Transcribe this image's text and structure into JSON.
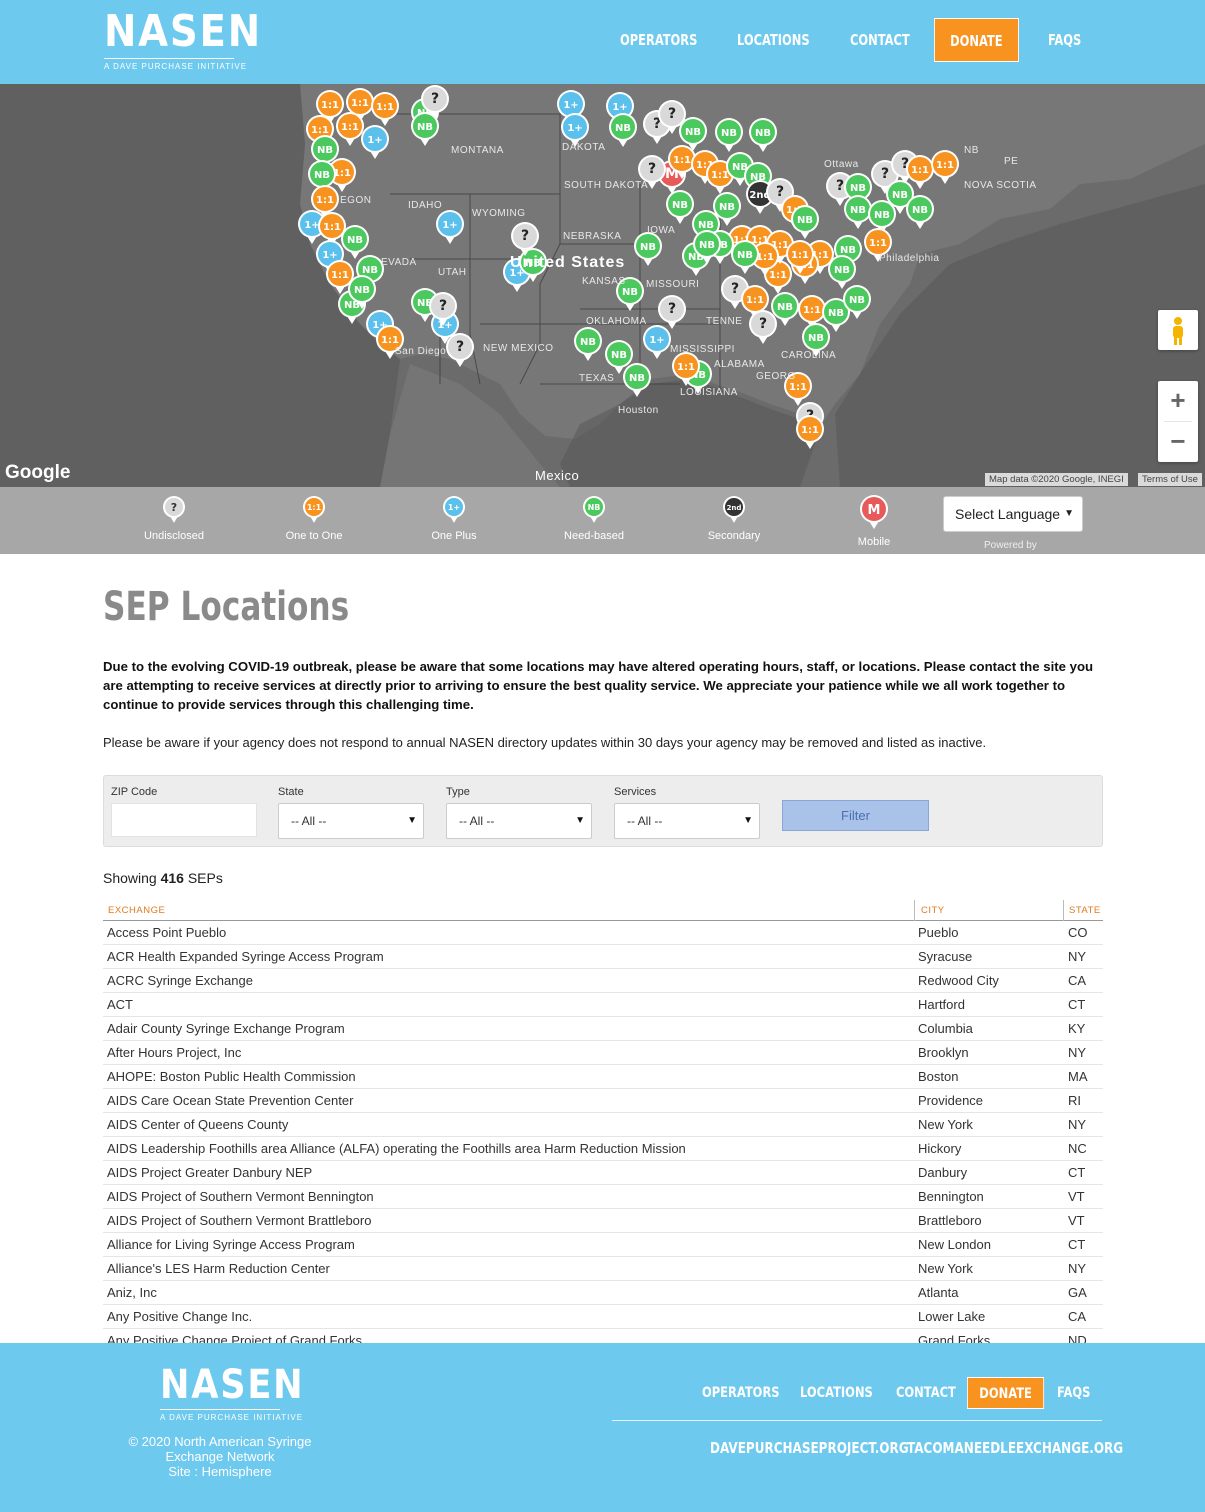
{
  "header": {
    "logo": "NASEN",
    "logo_tagline": "A DAVE PURCHASE INITIATIVE",
    "nav": [
      "OPERATORS",
      "LOCATIONS",
      "CONTACT",
      "DONATE",
      "FAQS"
    ]
  },
  "map": {
    "country_label": "United States",
    "labels": [
      "MONTANA",
      "DAKOTA",
      "SOUTH DAKOTA",
      "IDAHO",
      "WYOMING",
      "NEBRASKA",
      "IOWA",
      "UTAH",
      "KANSAS",
      "MISSOURI",
      "NEW MEXICO",
      "OKLAHOMA",
      "TEXAS",
      "MISSISSIPPI",
      "ALABAMA",
      "LOUISIANA",
      "TENNE",
      "GEORG",
      "CAROLINA",
      "Ottawa",
      "NOVA SCOTIA",
      "PE",
      "NB",
      "Philadelphia",
      "Houston",
      "San Diego",
      "EGON",
      "EVADA",
      "Mexico"
    ],
    "google": "Google",
    "attribution": "Map data ©2020 Google, INEGI",
    "terms": "Terms of Use",
    "zoom_in": "+",
    "zoom_out": "−"
  },
  "legend": {
    "items": [
      {
        "label": "Undisclosed",
        "glyph": "?",
        "color": "#d9d9d9"
      },
      {
        "label": "One to One",
        "glyph": "1:1",
        "color": "#f7931e"
      },
      {
        "label": "One Plus",
        "glyph": "1+",
        "color": "#5bc0eb"
      },
      {
        "label": "Need-based",
        "glyph": "NB",
        "color": "#4cc95e"
      },
      {
        "label": "Secondary",
        "glyph": "2nd",
        "color": "#333333"
      },
      {
        "label": "Mobile",
        "glyph": "M",
        "color": "#e85a5a"
      }
    ],
    "language_select": "Select Language",
    "powered_by": "Powered by"
  },
  "content": {
    "title": "SEP Locations",
    "notice": "Due to the evolving COVID-19 outbreak, please be aware that some locations may have altered operating hours, staff, or locations. Please contact the site you are attempting to receive services at directly prior to arriving to ensure the best quality service. We appreciate your patience while we all work together to continue to provide services through this challenging time.",
    "notice2": "Please be aware if your agency does not respond to annual NASEN directory updates within 30 days your agency may be removed and listed as inactive.",
    "filter": {
      "zip_label": "ZIP Code",
      "zip_value": "",
      "state_label": "State",
      "state_value": "-- All --",
      "type_label": "Type",
      "type_value": "-- All --",
      "services_label": "Services",
      "services_value": "-- All --",
      "button": "Filter"
    },
    "showing_prefix": "Showing",
    "showing_count": "416",
    "showing_suffix": "SEPs",
    "table": {
      "headers": [
        "EXCHANGE",
        "CITY",
        "STATE"
      ],
      "rows": [
        [
          "Access Point Pueblo",
          "Pueblo",
          "CO"
        ],
        [
          "ACR Health Expanded Syringe Access Program",
          "Syracuse",
          "NY"
        ],
        [
          "ACRC Syringe Exchange",
          "Redwood City",
          "CA"
        ],
        [
          "ACT",
          "Hartford",
          "CT"
        ],
        [
          "Adair County Syringe Exchange Program",
          "Columbia",
          "KY"
        ],
        [
          "After Hours Project, Inc",
          "Brooklyn",
          "NY"
        ],
        [
          "AHOPE: Boston Public Health Commission",
          "Boston",
          "MA"
        ],
        [
          "AIDS Care Ocean State Prevention Center",
          "Providence",
          "RI"
        ],
        [
          "AIDS Center of Queens County",
          "New York",
          "NY"
        ],
        [
          "AIDS Leadership Foothills area Alliance (ALFA) operating the Foothills area Harm Reduction Mission",
          "Hickory",
          "NC"
        ],
        [
          "AIDS Project Greater Danbury NEP",
          "Danbury",
          "CT"
        ],
        [
          "AIDS Project of Southern Vermont Bennington",
          "Bennington",
          "VT"
        ],
        [
          "AIDS Project of Southern Vermont Brattleboro",
          "Brattleboro",
          "VT"
        ],
        [
          "Alliance for Living Syringe Access Program",
          "New London",
          "CT"
        ],
        [
          "Alliance's LES Harm Reduction Center",
          "New York",
          "NY"
        ],
        [
          "Aniz, Inc",
          "Atlanta",
          "GA"
        ],
        [
          "Any Positive Change Inc.",
          "Lower Lake",
          "CA"
        ],
        [
          "Any Positive Change Project of Grand Forks",
          "Grand Forks",
          "ND"
        ]
      ]
    }
  },
  "footer": {
    "logo": "NASEN",
    "logo_tagline": "A DAVE PURCHASE INITIATIVE",
    "copyright_line1": "© 2020 North American Syringe",
    "copyright_line2": "Exchange Network",
    "site_credit": "Site : Hemisphere",
    "nav": [
      "OPERATORS",
      "LOCATIONS",
      "CONTACT",
      "DONATE",
      "FAQS"
    ],
    "links": [
      "DAVEPURCHASEPROJECT.ORG",
      "TACOMANEEDLEEXCHANGE.ORG"
    ]
  }
}
